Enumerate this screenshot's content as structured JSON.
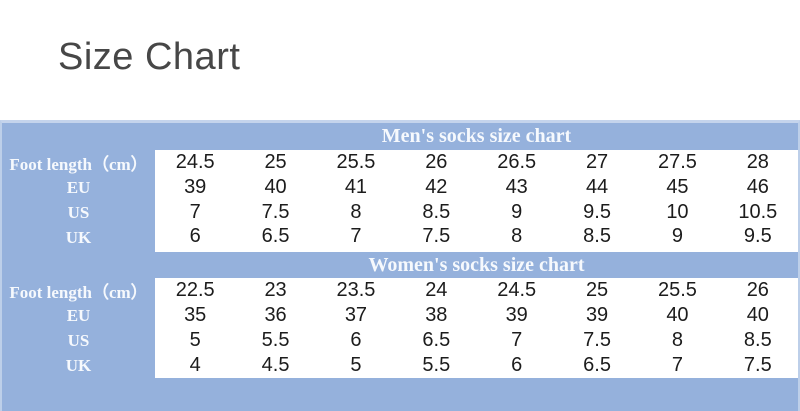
{
  "title": "Size Chart",
  "colors": {
    "table_blue": "#95b1dc",
    "border_blue": "#c5d4ec",
    "header_text": "#f6f9fd",
    "value_text": "#1c1c1c",
    "title_text": "#474747"
  },
  "chart_data": [
    {
      "type": "table",
      "title": "Men's socks size chart",
      "rows": [
        {
          "label": "Foot length（cm）",
          "values": [
            "24.5",
            "25",
            "25.5",
            "26",
            "26.5",
            "27",
            "27.5",
            "28"
          ]
        },
        {
          "label": "EU",
          "values": [
            "39",
            "40",
            "41",
            "42",
            "43",
            "44",
            "45",
            "46"
          ]
        },
        {
          "label": "US",
          "values": [
            "7",
            "7.5",
            "8",
            "8.5",
            "9",
            "9.5",
            "10",
            "10.5"
          ]
        },
        {
          "label": "UK",
          "values": [
            "6",
            "6.5",
            "7",
            "7.5",
            "8",
            "8.5",
            "9",
            "9.5"
          ]
        }
      ]
    },
    {
      "type": "table",
      "title": "Women's socks size chart",
      "rows": [
        {
          "label": "Foot length（cm）",
          "values": [
            "22.5",
            "23",
            "23.5",
            "24",
            "24.5",
            "25",
            "25.5",
            "26"
          ]
        },
        {
          "label": "EU",
          "values": [
            "35",
            "36",
            "37",
            "38",
            "39",
            "39",
            "40",
            "40"
          ]
        },
        {
          "label": "US",
          "values": [
            "5",
            "5.5",
            "6",
            "6.5",
            "7",
            "7.5",
            "8",
            "8.5"
          ]
        },
        {
          "label": "UK",
          "values": [
            "4",
            "4.5",
            "5",
            "5.5",
            "6",
            "6.5",
            "7",
            "7.5"
          ]
        }
      ]
    }
  ]
}
